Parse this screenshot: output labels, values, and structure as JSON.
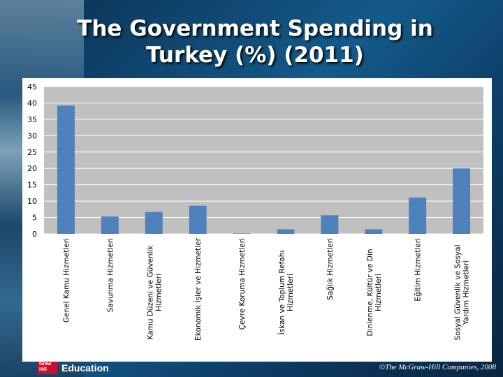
{
  "slide": {
    "title_line1": "The Government Spending in",
    "title_line2": "Turkey (%) (2011)",
    "logo_text_top": "Graw",
    "logo_text_bottom": "Hill",
    "logo_word": "Education",
    "copyright": "©The McGraw-Hill Companies, 2008"
  },
  "colors": {
    "bar": "#4f81bd",
    "plot_bg": "#c0c0c0",
    "grid": "#ffffff"
  },
  "chart_data": {
    "type": "bar",
    "title": "The Government Spending in Turkey (%) (2011)",
    "xlabel": "",
    "ylabel": "",
    "ylim": [
      0,
      45
    ],
    "yticks": [
      0,
      5,
      10,
      15,
      20,
      25,
      30,
      35,
      40,
      45
    ],
    "grid": true,
    "legend": "none",
    "categories": [
      "Genel Kamu Hizmetleri",
      "Savunma Hizmetleri",
      "Kamu Düzeni ve Güvenlik Hizmetleri",
      "Ekonomik İşler ve Hizmetler",
      "Çevre Koruma Hizmetleri",
      "İskan ve Toplum Refahı Hizmetleri",
      "Sağlık Hizmetleri",
      "Dinlenme, Kültür ve Din Hizmetleri",
      "Eğitim Hizmetleri",
      "Sosyal Güvenlik ve Sosyal Yardım Hizmetleri"
    ],
    "category_lines": [
      [
        "Genel Kamu Hizmetleri"
      ],
      [
        "Savunma Hizmetleri"
      ],
      [
        "Kamu Düzeni ve Güvenlik",
        "Hizmetleri"
      ],
      [
        "Ekonomik İşler ve Hizmetler"
      ],
      [
        "Çevre Koruma Hizmetleri"
      ],
      [
        "İskan ve Toplum Refahı",
        "Hizmetleri"
      ],
      [
        "Sağlık Hizmetleri"
      ],
      [
        "Dinlenme, Kültür ve Din",
        "Hizmetleri"
      ],
      [
        "Eğitim Hizmetleri"
      ],
      [
        "Sosyal Güvenlik ve Sosyal",
        "Yardım Hizmetleri"
      ]
    ],
    "values": [
      39.2,
      5.3,
      6.7,
      8.6,
      0.1,
      1.4,
      5.7,
      1.4,
      11.1,
      20.0
    ]
  }
}
